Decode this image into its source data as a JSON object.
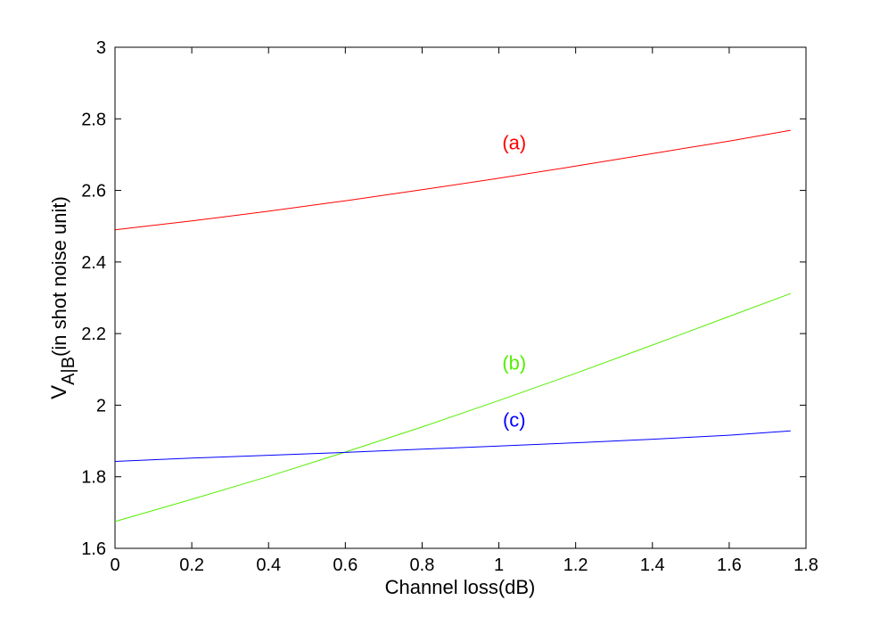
{
  "chart_data": {
    "type": "line",
    "title": "",
    "xlabel": "Channel loss(dB)",
    "ylabel": {
      "base": "V",
      "subscript": "A|B",
      "rest": "(in shot noise unit)"
    },
    "xlim": [
      0,
      1.8
    ],
    "ylim": [
      1.6,
      3.0
    ],
    "xticks": [
      0,
      0.2,
      0.4,
      0.6,
      0.8,
      1.0,
      1.2,
      1.4,
      1.6,
      1.8
    ],
    "xtick_labels": [
      "0",
      "0.2",
      "0.4",
      "0.6",
      "0.8",
      "1",
      "1.2",
      "1.4",
      "1.6",
      "1.8"
    ],
    "yticks": [
      1.6,
      1.8,
      2.0,
      2.2,
      2.4,
      2.6,
      2.8,
      3.0
    ],
    "ytick_labels": [
      "1.6",
      "1.8",
      "2",
      "2.2",
      "2.4",
      "2.6",
      "2.8",
      "3"
    ],
    "grid": false,
    "series": [
      {
        "name": "(a)",
        "color": "#ff0000",
        "x": [
          0,
          0.2,
          0.4,
          0.6,
          0.8,
          1.0,
          1.2,
          1.4,
          1.6,
          1.76
        ],
        "y": [
          2.49,
          2.515,
          2.542,
          2.571,
          2.602,
          2.634,
          2.668,
          2.703,
          2.738,
          2.768
        ],
        "label_at": [
          1.04,
          2.715
        ]
      },
      {
        "name": "(b)",
        "color": "#55ee00",
        "x": [
          0,
          0.2,
          0.4,
          0.6,
          0.8,
          1.0,
          1.2,
          1.4,
          1.6,
          1.76
        ],
        "y": [
          1.675,
          1.737,
          1.801,
          1.869,
          1.939,
          2.013,
          2.089,
          2.168,
          2.248,
          2.312
        ],
        "label_at": [
          1.04,
          2.1
        ]
      },
      {
        "name": "(c)",
        "color": "#0000ff",
        "x": [
          0,
          0.2,
          0.4,
          0.6,
          0.8,
          1.0,
          1.2,
          1.4,
          1.6,
          1.76
        ],
        "y": [
          1.843,
          1.852,
          1.86,
          1.868,
          1.877,
          1.886,
          1.895,
          1.905,
          1.916,
          1.928
        ],
        "label_at": [
          1.04,
          1.94
        ]
      }
    ]
  }
}
